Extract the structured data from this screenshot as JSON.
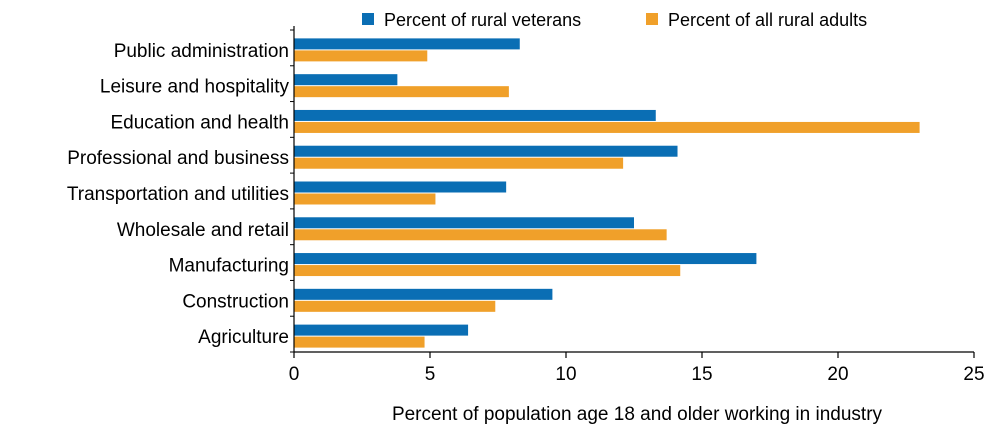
{
  "chart_data": {
    "type": "bar",
    "orientation": "horizontal",
    "categories": [
      "Public administration",
      "Leisure and hospitality",
      "Education and health",
      "Professional and business",
      "Transportation and utilities",
      "Wholesale and retail",
      "Manufacturing",
      "Construction",
      "Agriculture"
    ],
    "series": [
      {
        "name": "Percent of rural veterans",
        "color": "#0a6eb4",
        "values": [
          8.3,
          3.8,
          13.3,
          14.1,
          7.8,
          12.5,
          17.0,
          9.5,
          6.4
        ]
      },
      {
        "name": "Percent of all rural adults",
        "color": "#f0a02a",
        "values": [
          4.9,
          7.9,
          23.0,
          12.1,
          5.2,
          13.7,
          14.2,
          7.4,
          4.8
        ]
      }
    ],
    "xlabel": "Percent of population age 18 and older working in industry",
    "ylabel": "",
    "xlim": [
      0,
      25
    ],
    "xticks": [
      0,
      5,
      10,
      15,
      20,
      25
    ],
    "grid": false,
    "legend_position": "top"
  }
}
